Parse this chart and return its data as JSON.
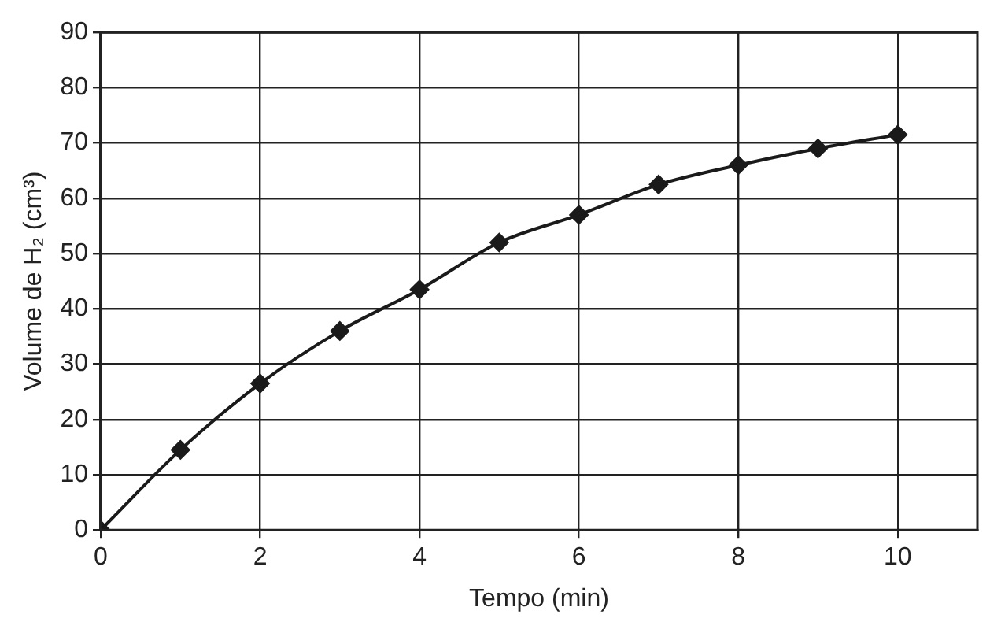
{
  "chart_data": {
    "type": "line",
    "xlabel": "Tempo (min)",
    "ylabel": "Volume de H₂ (cm³)",
    "x": [
      0,
      1,
      2,
      3,
      4,
      5,
      6,
      7,
      8,
      9,
      10
    ],
    "series": [
      {
        "color": "#1a1a1a",
        "values": [
          0,
          14.5,
          26.5,
          36,
          43.5,
          52,
          57,
          62.5,
          66,
          69,
          71.5
        ]
      }
    ],
    "xlim": [
      0,
      11
    ],
    "xticks": [
      0,
      2,
      4,
      6,
      8,
      10
    ],
    "ylim": [
      0,
      90
    ],
    "yticks": [
      0,
      10,
      20,
      30,
      40,
      50,
      60,
      70,
      80,
      90
    ],
    "grid": true,
    "marker": "diamond",
    "line_style": "solid",
    "legend": false
  }
}
